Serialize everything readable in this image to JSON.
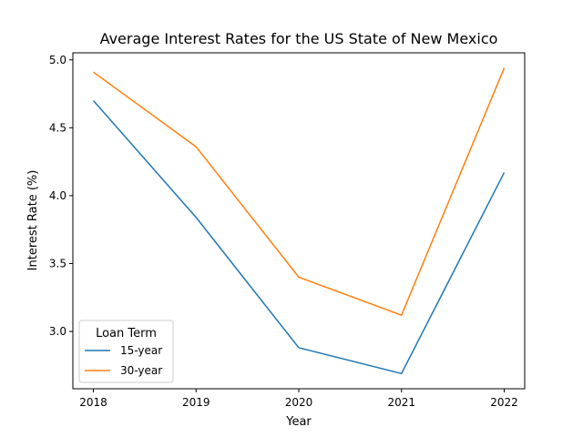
{
  "chart_data": {
    "type": "line",
    "title": "Average Interest Rates for the US State of New Mexico",
    "xlabel": "Year",
    "ylabel": "Interest Rate (%)",
    "categories": [
      "2018",
      "2019",
      "2020",
      "2021",
      "2022"
    ],
    "series": [
      {
        "name": "15-year",
        "color": "#1f77b4",
        "values": [
          4.7,
          3.84,
          2.88,
          2.69,
          4.17
        ]
      },
      {
        "name": "30-year",
        "color": "#ff7f0e",
        "values": [
          4.91,
          4.36,
          3.4,
          3.12,
          4.94
        ]
      }
    ],
    "yticks": [
      "3.0",
      "3.5",
      "4.0",
      "4.5",
      "5.0"
    ],
    "ylim": [
      2.578,
      5.052
    ],
    "legend": {
      "title": "Loan Term",
      "position": "lower-left"
    },
    "grid": false
  }
}
